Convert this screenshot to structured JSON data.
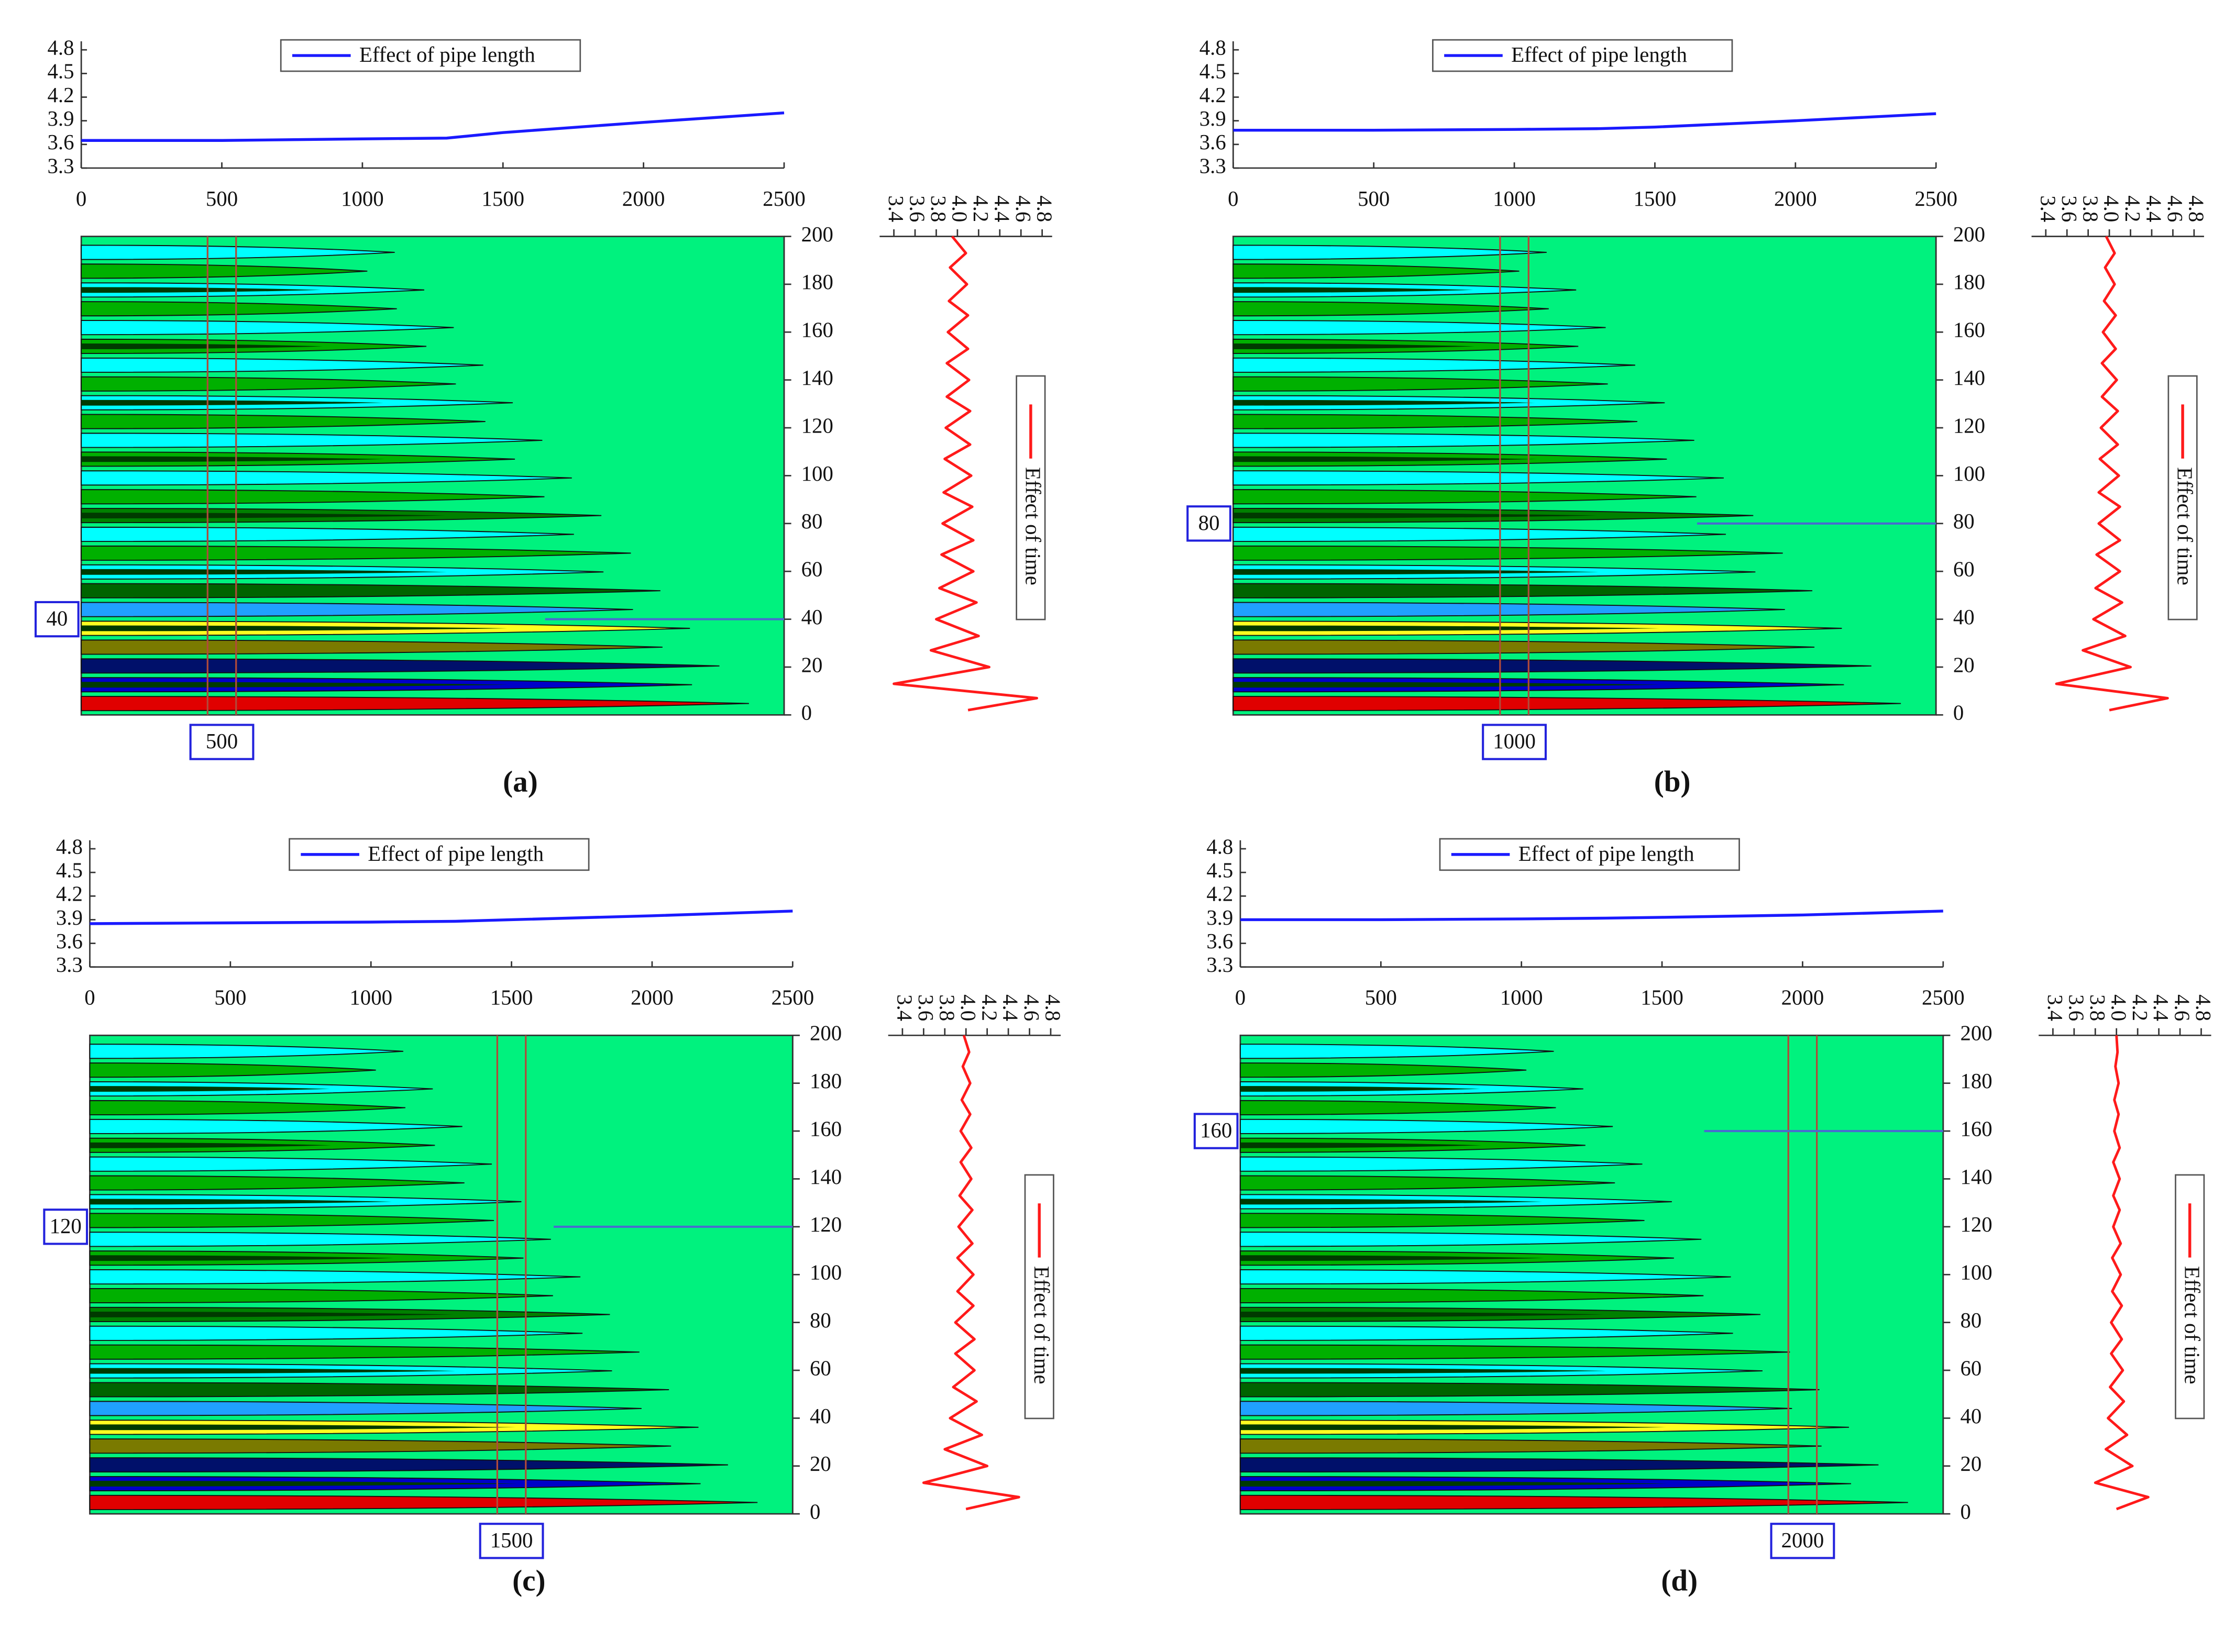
{
  "chart_data": [
    {
      "type": "contour-panel",
      "caption": "(a)",
      "length_chart": {
        "type": "line",
        "xlim": [
          0,
          2500
        ],
        "xticks": [
          0,
          500,
          1000,
          1500,
          2000,
          2500
        ],
        "ylim": [
          3.3,
          4.8
        ],
        "yticks": [
          3.3,
          3.6,
          3.9,
          4.2,
          4.5,
          4.8
        ],
        "series": [
          {
            "name": "Effect of pipe length",
            "color": "#1a1aff",
            "x": [
              0,
              500,
              1000,
              1300,
              1500,
              2000,
              2500
            ],
            "values": [
              3.65,
              3.65,
              3.67,
              3.68,
              3.75,
              3.88,
              4.0
            ]
          }
        ]
      },
      "contour": {
        "type": "contour",
        "xlim": [
          0,
          2500
        ],
        "ylim": [
          0,
          200
        ],
        "yticks": [
          0,
          20,
          40,
          60,
          80,
          100,
          120,
          140,
          160,
          180,
          200
        ],
        "selected_x": 500,
        "selected_y": 40
      },
      "time_chart": {
        "type": "line",
        "orientation": "vertical",
        "xlim": [
          3.4,
          4.8
        ],
        "xticks": [
          3.4,
          3.6,
          3.8,
          {
            "value": 4,
            "label": "4.0"
          },
          4.2,
          4.4,
          4.6,
          4.8
        ],
        "ylim": [
          0,
          200
        ],
        "series": [
          {
            "name": "Effect of time",
            "color": "#ff1a1a",
            "y": [
              2,
              7,
              13,
              20,
              27,
              33,
              40,
              47,
              53,
              60,
              67,
              73,
              80,
              87,
              93,
              100,
              107,
              113,
              120,
              127,
              133,
              140,
              147,
              153,
              160,
              167,
              173,
              180,
              187,
              193,
              200
            ],
            "values": [
              4.1,
              4.75,
              3.4,
              4.3,
              3.75,
              4.2,
              3.8,
              4.18,
              3.83,
              4.15,
              3.85,
              4.15,
              3.86,
              4.14,
              3.87,
              4.13,
              3.88,
              4.12,
              3.89,
              4.12,
              3.9,
              4.11,
              3.9,
              4.1,
              3.91,
              4.1,
              3.92,
              4.09,
              3.93,
              4.08,
              3.95
            ]
          }
        ]
      }
    },
    {
      "type": "contour-panel",
      "caption": "(b)",
      "length_chart": {
        "type": "line",
        "xlim": [
          0,
          2500
        ],
        "xticks": [
          0,
          500,
          1000,
          1500,
          2000,
          2500
        ],
        "ylim": [
          3.3,
          4.8
        ],
        "yticks": [
          3.3,
          3.6,
          3.9,
          4.2,
          4.5,
          4.8
        ],
        "series": [
          {
            "name": "Effect of pipe length",
            "color": "#1a1aff",
            "x": [
              0,
              500,
              1000,
              1300,
              1500,
              2000,
              2500
            ],
            "values": [
              3.78,
              3.78,
              3.79,
              3.8,
              3.82,
              3.9,
              3.99
            ]
          }
        ]
      },
      "contour": {
        "type": "contour",
        "xlim": [
          0,
          2500
        ],
        "ylim": [
          0,
          200
        ],
        "yticks": [
          0,
          20,
          40,
          60,
          80,
          100,
          120,
          140,
          160,
          180,
          200
        ],
        "selected_x": 1000,
        "selected_y": 80
      },
      "time_chart": {
        "type": "line",
        "orientation": "vertical",
        "xlim": [
          3.4,
          4.8
        ],
        "xticks": [
          3.4,
          3.6,
          3.8,
          {
            "value": 4,
            "label": "4.0"
          },
          4.2,
          4.4,
          4.6,
          4.8
        ],
        "ylim": [
          0,
          200
        ],
        "series": [
          {
            "name": "Effect of time",
            "color": "#ff1a1a",
            "y": [
              2,
              7,
              13,
              20,
              27,
              33,
              40,
              47,
              53,
              60,
              67,
              73,
              80,
              87,
              93,
              100,
              107,
              113,
              120,
              127,
              133,
              140,
              147,
              153,
              160,
              167,
              173,
              180,
              187,
              193,
              200
            ],
            "values": [
              4.0,
              4.55,
              3.5,
              4.2,
              3.75,
              4.15,
              3.85,
              4.12,
              3.87,
              4.1,
              3.88,
              4.1,
              3.9,
              4.1,
              3.9,
              4.09,
              3.91,
              4.08,
              3.92,
              4.08,
              3.93,
              4.07,
              3.93,
              4.06,
              3.94,
              4.06,
              3.95,
              4.05,
              3.96,
              4.05,
              3.97
            ]
          }
        ]
      }
    },
    {
      "type": "contour-panel",
      "caption": "(c)",
      "length_chart": {
        "type": "line",
        "xlim": [
          0,
          2500
        ],
        "xticks": [
          0,
          500,
          1000,
          1500,
          2000,
          2500
        ],
        "ylim": [
          3.3,
          4.8
        ],
        "yticks": [
          3.3,
          3.6,
          3.9,
          4.2,
          4.5,
          4.8
        ],
        "series": [
          {
            "name": "Effect of pipe length",
            "color": "#1a1aff",
            "x": [
              0,
              500,
              1000,
              1300,
              1500,
              2000,
              2500
            ],
            "values": [
              3.85,
              3.86,
              3.87,
              3.88,
              3.9,
              3.95,
              4.01
            ]
          }
        ]
      },
      "contour": {
        "type": "contour",
        "xlim": [
          0,
          2500
        ],
        "ylim": [
          0,
          200
        ],
        "yticks": [
          0,
          20,
          40,
          60,
          80,
          100,
          120,
          140,
          160,
          180,
          200
        ],
        "selected_x": 1500,
        "selected_y": 120
      },
      "time_chart": {
        "type": "line",
        "orientation": "vertical",
        "xlim": [
          3.4,
          4.8
        ],
        "xticks": [
          3.4,
          3.6,
          3.8,
          {
            "value": 4,
            "label": "4.0"
          },
          4.2,
          4.4,
          4.6,
          4.8
        ],
        "ylim": [
          0,
          200
        ],
        "series": [
          {
            "name": "Effect of time",
            "color": "#ff1a1a",
            "y": [
              2,
              7,
              13,
              20,
              27,
              33,
              40,
              47,
              53,
              60,
              67,
              73,
              80,
              87,
              93,
              100,
              107,
              113,
              120,
              127,
              133,
              140,
              147,
              153,
              160,
              167,
              173,
              180,
              187,
              193,
              200
            ],
            "values": [
              4.0,
              4.5,
              3.6,
              4.2,
              3.8,
              4.15,
              3.85,
              4.1,
              3.88,
              4.08,
              3.9,
              4.08,
              3.9,
              4.07,
              3.92,
              4.07,
              3.92,
              4.06,
              3.93,
              4.06,
              3.94,
              4.05,
              3.95,
              4.05,
              3.95,
              4.04,
              3.96,
              4.04,
              3.97,
              4.03,
              3.98
            ]
          }
        ]
      }
    },
    {
      "type": "contour-panel",
      "caption": "(d)",
      "length_chart": {
        "type": "line",
        "xlim": [
          0,
          2500
        ],
        "xticks": [
          0,
          500,
          1000,
          1500,
          2000,
          2500
        ],
        "ylim": [
          3.3,
          4.8
        ],
        "yticks": [
          3.3,
          3.6,
          3.9,
          4.2,
          4.5,
          4.8
        ],
        "series": [
          {
            "name": "Effect of pipe length",
            "color": "#1a1aff",
            "x": [
              0,
              500,
              1000,
              1300,
              1500,
              2000,
              2500
            ],
            "values": [
              3.9,
              3.9,
              3.91,
              3.92,
              3.93,
              3.96,
              4.01
            ]
          }
        ]
      },
      "contour": {
        "type": "contour",
        "xlim": [
          0,
          2500
        ],
        "ylim": [
          0,
          200
        ],
        "yticks": [
          0,
          20,
          40,
          60,
          80,
          100,
          120,
          140,
          160,
          180,
          200
        ],
        "selected_x": 2000,
        "selected_y": 160
      },
      "time_chart": {
        "type": "line",
        "orientation": "vertical",
        "xlim": [
          3.4,
          4.8
        ],
        "xticks": [
          3.4,
          3.6,
          3.8,
          {
            "value": 4,
            "label": "4.0"
          },
          4.2,
          4.4,
          4.6,
          4.8
        ],
        "ylim": [
          0,
          200
        ],
        "series": [
          {
            "name": "Effect of time",
            "color": "#ff1a1a",
            "y": [
              2,
              7,
              13,
              20,
              27,
              33,
              40,
              47,
              53,
              60,
              67,
              73,
              80,
              87,
              93,
              100,
              107,
              113,
              120,
              127,
              133,
              140,
              147,
              153,
              160,
              167,
              173,
              180,
              187,
              193,
              200
            ],
            "values": [
              4.0,
              4.3,
              3.8,
              4.15,
              3.9,
              4.1,
              3.92,
              4.07,
              3.94,
              4.06,
              3.95,
              4.05,
              3.95,
              4.05,
              3.96,
              4.04,
              3.96,
              4.04,
              3.97,
              4.03,
              3.97,
              4.03,
              3.97,
              4.03,
              3.98,
              4.02,
              3.98,
              4.02,
              3.99,
              4.01,
              4.0
            ]
          }
        ]
      }
    }
  ]
}
